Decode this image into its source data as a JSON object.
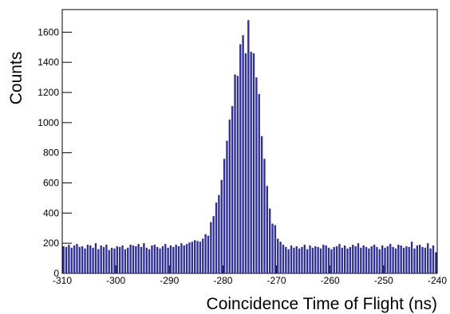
{
  "chart_data": {
    "type": "histogram",
    "x_label": "Coincidence Time of Flight (ns)",
    "y_label": "Counts",
    "color": "#2e2e9c",
    "bins": [
      -310,
      -309.5,
      -309,
      -308.5,
      -308,
      -307.5,
      -307,
      -306.5,
      -306,
      -305.5,
      -305,
      -304.5,
      -304,
      -303.5,
      -303,
      -302.5,
      -302,
      -301.5,
      -301,
      -300.5,
      -300,
      -299.5,
      -299,
      -298.5,
      -298,
      -297.5,
      -297,
      -296.5,
      -296,
      -295.5,
      -295,
      -294.5,
      -294,
      -293.5,
      -293,
      -292.5,
      -292,
      -291.5,
      -291,
      -290.5,
      -290,
      -289.5,
      -289,
      -288.5,
      -288,
      -287.5,
      -287,
      -286.5,
      -286,
      -285.5,
      -285,
      -284.5,
      -284,
      -283.5,
      -283,
      -282.5,
      -282,
      -281.5,
      -281,
      -280.5,
      -280,
      -279.5,
      -279,
      -278.5,
      -278,
      -277.5,
      -277,
      -276.5,
      -276,
      -275.5,
      -275,
      -274.5,
      -274,
      -273.5,
      -273,
      -272.5,
      -272,
      -271.5,
      -271,
      -270.5,
      -270,
      -269.5,
      -269,
      -268.5,
      -268,
      -267.5,
      -267,
      -266.5,
      -266,
      -265.5,
      -265,
      -264.5,
      -264,
      -263.5,
      -263,
      -262.5,
      -262,
      -261.5,
      -261,
      -260.5,
      -260,
      -259.5,
      -259,
      -258.5,
      -258,
      -257.5,
      -257,
      -256.5,
      -256,
      -255.5,
      -255,
      -254.5,
      -254,
      -253.5,
      -253,
      -252.5,
      -252,
      -251.5,
      -251,
      -250.5,
      -250,
      -249.5,
      -249,
      -248.5,
      -248,
      -247.5,
      -247,
      -246.5,
      -246,
      -245.5,
      -245,
      -244.5,
      -244,
      -243.5,
      -243,
      -242.5,
      -242,
      -241.5,
      -241,
      -240.5,
      -240
    ],
    "values": [
      180,
      175,
      190,
      170,
      185,
      195,
      175,
      180,
      165,
      190,
      185,
      170,
      200,
      160,
      185,
      175,
      190,
      155,
      170,
      165,
      180,
      175,
      185,
      160,
      170,
      190,
      185,
      180,
      195,
      175,
      200,
      170,
      160,
      185,
      190,
      175,
      165,
      180,
      195,
      170,
      185,
      175,
      190,
      180,
      200,
      185,
      195,
      205,
      210,
      220,
      215,
      210,
      230,
      260,
      250,
      340,
      380,
      470,
      520,
      620,
      760,
      880,
      1020,
      1110,
      1320,
      1310,
      1520,
      1580,
      1460,
      1680,
      1470,
      1460,
      1300,
      1190,
      910,
      760,
      580,
      430,
      330,
      320,
      230,
      210,
      190,
      175,
      160,
      185,
      170,
      180,
      165,
      175,
      190,
      160,
      185,
      170,
      180,
      175,
      165,
      190,
      185,
      170,
      160,
      175,
      180,
      195,
      170,
      185,
      165,
      175,
      190,
      180,
      200,
      170,
      185,
      175,
      165,
      180,
      190,
      175,
      160,
      185,
      170,
      180,
      195,
      175,
      165,
      190,
      185,
      170,
      180,
      175,
      210,
      165,
      185,
      190,
      175,
      170,
      200,
      165,
      185,
      140
    ],
    "xlim": [
      -310,
      -240
    ],
    "xticks": [
      -310,
      -300,
      -290,
      -280,
      -270,
      -260,
      -250,
      -240
    ],
    "ylim": [
      0,
      1750
    ],
    "yticks": [
      0,
      200,
      400,
      600,
      800,
      1000,
      1200,
      1400,
      1600
    ]
  }
}
